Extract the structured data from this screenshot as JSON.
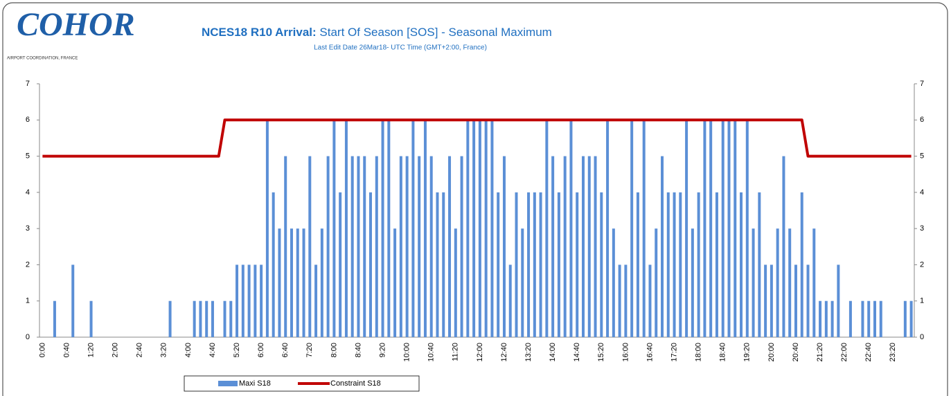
{
  "logo": {
    "name": "COHOR",
    "tagline": "AIRPORT COORDINATION, FRANCE"
  },
  "chart_data": {
    "type": "bar",
    "title": [
      "NCES18 R10 Arrival:",
      "Start Of Season [SOS] - Seasonal Maximum"
    ],
    "subtitle": "Last Edit Date 26Mar18- UTC Time (GMT+2:00,  France)",
    "categories": [
      "0:00",
      null,
      null,
      null,
      "0:40",
      null,
      null,
      null,
      "1:20",
      null,
      null,
      null,
      "2:00",
      null,
      null,
      null,
      "2:40",
      null,
      null,
      null,
      "3:20",
      null,
      null,
      null,
      "4:00",
      null,
      null,
      null,
      "4:40",
      null,
      null,
      null,
      "5:20",
      null,
      null,
      null,
      "6:00",
      null,
      null,
      null,
      "6:40",
      null,
      null,
      null,
      "7:20",
      null,
      null,
      null,
      "8:00",
      null,
      null,
      null,
      "8:40",
      null,
      null,
      null,
      "9:20",
      null,
      null,
      null,
      "10:00",
      null,
      null,
      null,
      "10:40",
      null,
      null,
      null,
      "11:20",
      null,
      null,
      null,
      "12:00",
      null,
      null,
      null,
      "12:40",
      null,
      null,
      null,
      "13:20",
      null,
      null,
      null,
      "14:00",
      null,
      null,
      null,
      "14:40",
      null,
      null,
      null,
      "15:20",
      null,
      null,
      null,
      "16:00",
      null,
      null,
      null,
      "16:40",
      null,
      null,
      null,
      "17:20",
      null,
      null,
      null,
      "18:00",
      null,
      null,
      null,
      "18:40",
      null,
      null,
      null,
      "19:20",
      null,
      null,
      null,
      "20:00",
      null,
      null,
      null,
      "20:40",
      null,
      null,
      null,
      "21:20",
      null,
      null,
      null,
      "22:00",
      null,
      null,
      null,
      "22:40",
      null,
      null,
      null,
      "23:20",
      null,
      null,
      null
    ],
    "series": [
      {
        "name": "Maxi S18",
        "type": "bar",
        "color": "#5b8fd6",
        "values": [
          0,
          0,
          1,
          0,
          0,
          2,
          0,
          0,
          1,
          0,
          0,
          0,
          0,
          0,
          0,
          0,
          0,
          0,
          0,
          0,
          0,
          1,
          0,
          0,
          0,
          1,
          1,
          1,
          1,
          0,
          1,
          1,
          2,
          2,
          2,
          2,
          2,
          6,
          4,
          3,
          5,
          3,
          3,
          3,
          5,
          2,
          3,
          5,
          6,
          4,
          6,
          5,
          5,
          5,
          4,
          5,
          6,
          6,
          3,
          5,
          5,
          6,
          5,
          6,
          5,
          4,
          4,
          5,
          3,
          5,
          6,
          6,
          6,
          6,
          6,
          4,
          5,
          2,
          4,
          3,
          4,
          4,
          4,
          6,
          5,
          4,
          5,
          6,
          4,
          5,
          5,
          5,
          4,
          6,
          3,
          2,
          2,
          6,
          4,
          6,
          2,
          3,
          5,
          4,
          4,
          4,
          6,
          3,
          4,
          6,
          6,
          4,
          6,
          6,
          6,
          4,
          6,
          3,
          4,
          2,
          2,
          3,
          5,
          3,
          2,
          4,
          2,
          3,
          1,
          1,
          1,
          2,
          0,
          1,
          0,
          1,
          1,
          1,
          1,
          0,
          0,
          0,
          1,
          1
        ]
      },
      {
        "name": "Constraint S18",
        "type": "line",
        "color": "#c00000",
        "values": [
          5,
          5,
          5,
          5,
          5,
          5,
          5,
          5,
          5,
          5,
          5,
          5,
          5,
          5,
          5,
          5,
          5,
          5,
          5,
          5,
          5,
          5,
          5,
          5,
          5,
          5,
          5,
          5,
          5,
          5,
          6,
          6,
          6,
          6,
          6,
          6,
          6,
          6,
          6,
          6,
          6,
          6,
          6,
          6,
          6,
          6,
          6,
          6,
          6,
          6,
          6,
          6,
          6,
          6,
          6,
          6,
          6,
          6,
          6,
          6,
          6,
          6,
          6,
          6,
          6,
          6,
          6,
          6,
          6,
          6,
          6,
          6,
          6,
          6,
          6,
          6,
          6,
          6,
          6,
          6,
          6,
          6,
          6,
          6,
          6,
          6,
          6,
          6,
          6,
          6,
          6,
          6,
          6,
          6,
          6,
          6,
          6,
          6,
          6,
          6,
          6,
          6,
          6,
          6,
          6,
          6,
          6,
          6,
          6,
          6,
          6,
          6,
          6,
          6,
          6,
          6,
          6,
          6,
          6,
          6,
          6,
          6,
          6,
          6,
          6,
          6,
          5,
          5,
          5,
          5,
          5,
          5,
          5,
          5,
          5,
          5,
          5,
          5,
          5,
          5,
          5,
          5,
          5,
          5
        ]
      }
    ],
    "ylim": [
      0,
      7
    ],
    "yticks": [
      0,
      1,
      2,
      3,
      4,
      5,
      6,
      7
    ],
    "y2lim": [
      0,
      7
    ],
    "y2ticks": [
      0,
      1,
      2,
      3,
      4,
      5,
      6,
      7
    ],
    "grid": false,
    "legend": "bottom"
  }
}
